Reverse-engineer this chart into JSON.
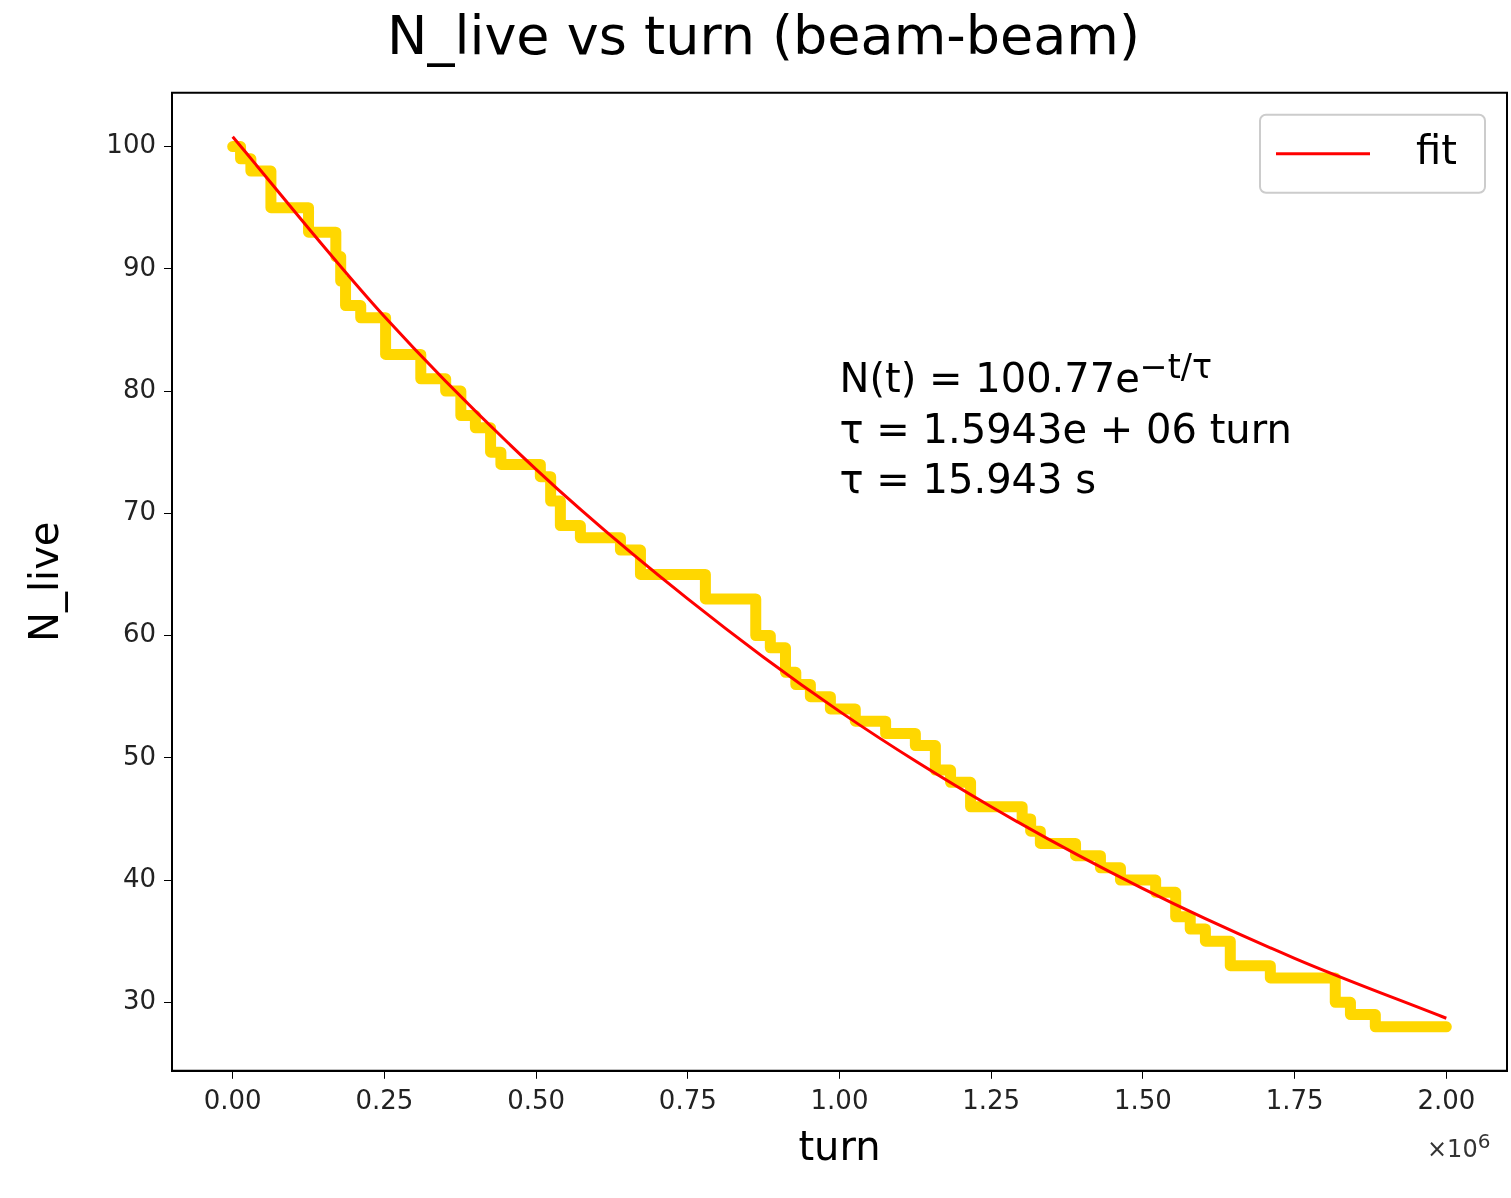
{
  "chart_data": {
    "type": "line",
    "title": "N_live vs turn (beam-beam)",
    "xlabel": "turn",
    "ylabel": "N_live",
    "series": [
      {
        "type": "step",
        "color": "#ffd700",
        "x": [
          0,
          0.013,
          0.03,
          0.063,
          0.125,
          0.17,
          0.178,
          0.186,
          0.211,
          0.252,
          0.31,
          0.351,
          0.376,
          0.4,
          0.425,
          0.442,
          0.507,
          0.524,
          0.54,
          0.573,
          0.639,
          0.672,
          0.779,
          0.862,
          0.886,
          0.911,
          0.928,
          0.952,
          0.985,
          1.026,
          1.076,
          1.125,
          1.158,
          1.183,
          1.216,
          1.301,
          1.315,
          1.331,
          1.389,
          1.43,
          1.463,
          1.521,
          1.554,
          1.578,
          1.603,
          1.644,
          1.71,
          1.817,
          1.842,
          1.883,
          2.0
        ],
        "values": [
          100,
          99,
          98,
          95,
          93,
          91,
          89,
          87,
          86,
          83,
          81,
          80,
          78,
          77,
          75,
          74,
          73,
          71,
          69,
          68,
          67,
          65,
          63,
          60,
          59,
          57,
          56,
          55,
          54,
          53,
          52,
          51,
          49,
          48,
          46,
          45,
          44,
          43,
          42,
          41,
          40,
          39,
          37,
          36,
          35,
          33,
          32,
          30,
          29,
          28,
          28
        ]
      },
      {
        "name": "fit",
        "color": "#ff0000",
        "x": [
          0,
          0.25,
          0.5,
          0.75,
          1.0,
          1.25,
          1.5,
          1.75,
          2.0
        ],
        "values": [
          100.8,
          86.1,
          73.6,
          63.0,
          53.8,
          46.0,
          39.3,
          33.6,
          28.7
        ]
      }
    ],
    "xlim": [
      -0.1,
      2.1
    ],
    "ylim": [
      24.4,
      104.4
    ],
    "xticks": [
      {
        "value": 0,
        "label": "0.00"
      },
      {
        "value": 0.25,
        "label": "0.25"
      },
      {
        "value": 0.5,
        "label": "0.50"
      },
      {
        "value": 0.75,
        "label": "0.75"
      },
      {
        "value": 1,
        "label": "1.00"
      },
      {
        "value": 1.25,
        "label": "1.25"
      },
      {
        "value": 1.5,
        "label": "1.50"
      },
      {
        "value": 1.75,
        "label": "1.75"
      },
      {
        "value": 2,
        "label": "2.00"
      }
    ],
    "yticks": [
      30,
      40,
      50,
      60,
      70,
      80,
      90,
      100
    ],
    "annotations": [
      "N(t) = 100.77e$^{−t/τ}$",
      "τ = 1.5943e + 06 turn",
      "τ = 15.943 s",
      "×10$^{6}$"
    ],
    "legend": "top right",
    "grid": false,
    "marker": "none"
  }
}
